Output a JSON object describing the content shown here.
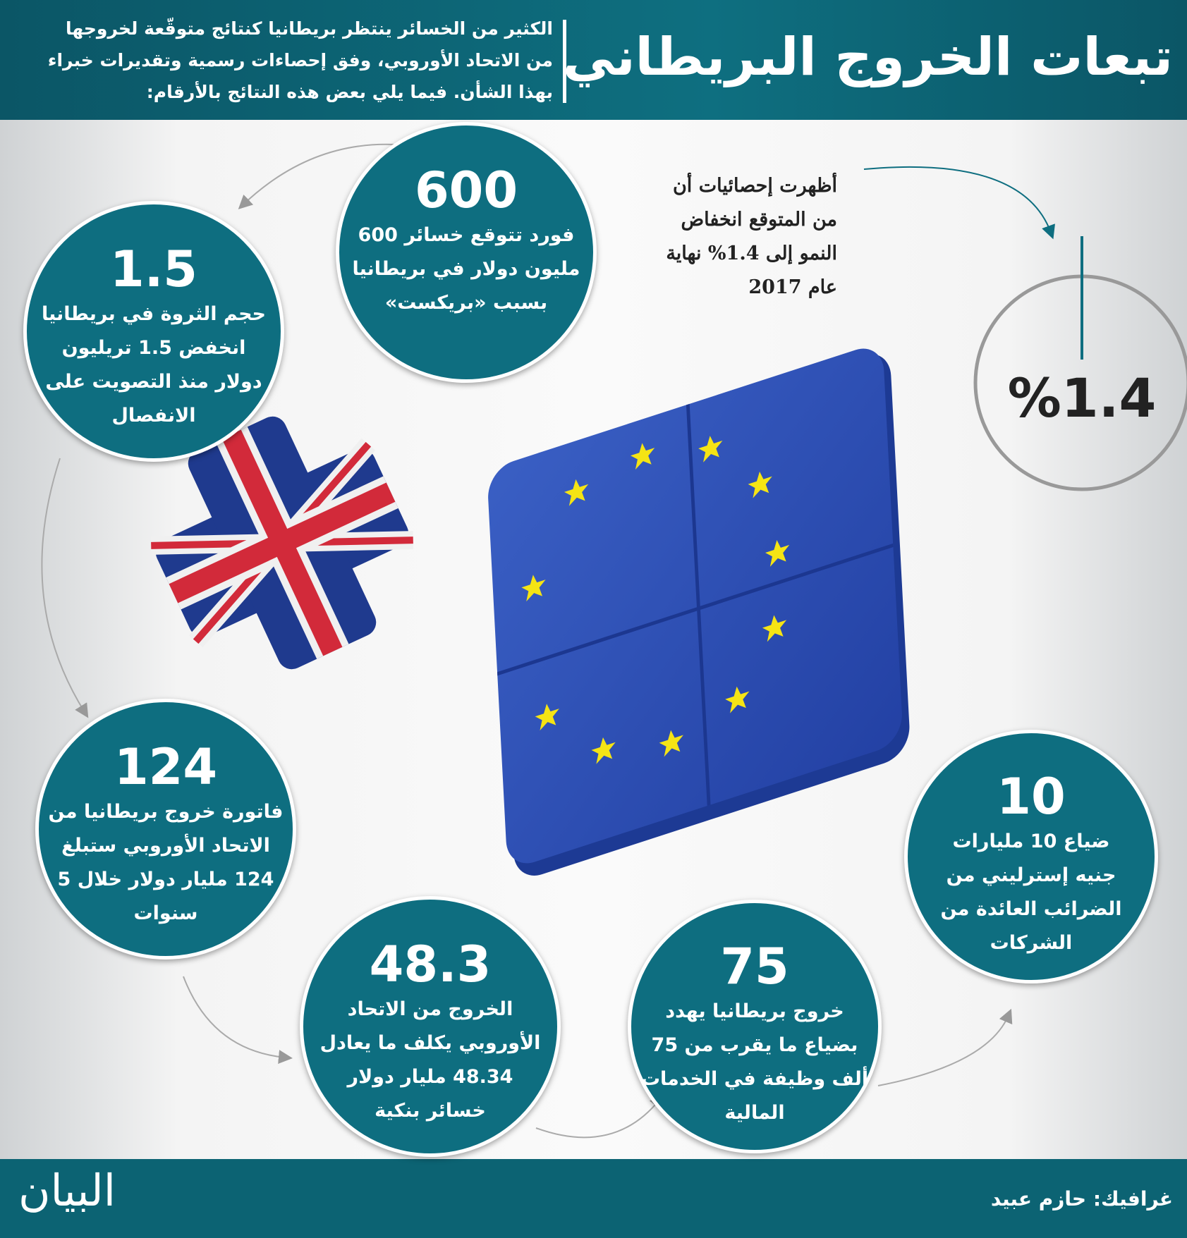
{
  "header": {
    "title": "تبعات الخروج البريطاني",
    "intro": [
      "الكثير من الخسائر ينتظر بريطانيا كنتائج متوقّعة لخروجها",
      "من الاتحاد الأوروبي، وفق إحصاءات رسمية وتقديرات خبراء",
      "بهذا الشأن. فيما يلي بعض هذه النتائج بالأرقام:"
    ]
  },
  "facts": [
    {
      "number": "600",
      "lines": [
        "فورد تتوقع خسائر 600",
        "مليون دولار في بريطانيا",
        "بسبب «بريكست»"
      ]
    },
    {
      "number": "1.5",
      "lines": [
        "حجم الثروة في بريطانيا",
        "انخفض 1.5 تريليون",
        "دولار منذ التصويت على",
        "الانفصال"
      ]
    },
    {
      "number": "124",
      "lines": [
        "فاتورة خروج بريطانيا من",
        "الاتحاد الأوروبي ستبلغ",
        "124 مليار دولار خلال 5",
        "سنوات"
      ]
    },
    {
      "number": "48.3",
      "lines": [
        "الخروج من الاتحاد",
        "الأوروبي يكلف ما يعادل",
        "48.34 مليار دولار",
        "خسائر بنكية"
      ]
    },
    {
      "number": "75",
      "lines": [
        "خروج بريطانيا يهدد",
        "بضياع ما يقرب من 75",
        "ألف وظيفة في الخدمات",
        "المالية"
      ]
    },
    {
      "number": "10",
      "lines": [
        "ضياع 10 مليارات",
        "جنيه إسترليني من",
        "الضرائب العائدة من",
        "الشركات"
      ]
    }
  ],
  "growth": {
    "lines": [
      "أظهرت إحصائيات أن",
      "من المتوقع انخفاض",
      "النمو إلى 1.4% نهاية",
      "عام 2017"
    ],
    "value": "%1.4"
  },
  "footer": {
    "logo": "البيان",
    "credit": "غرافيك: حازم عبيد"
  }
}
